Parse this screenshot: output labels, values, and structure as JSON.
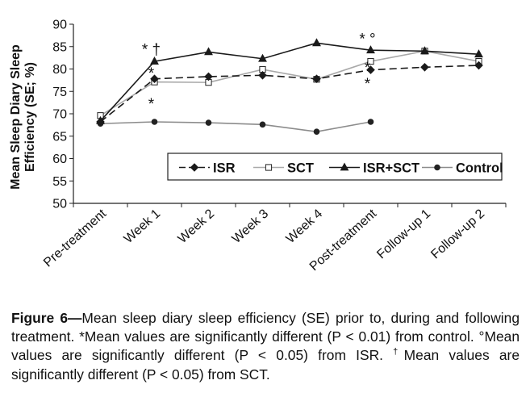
{
  "chart_data": {
    "type": "line",
    "title": "",
    "xlabel": "",
    "ylabel": "Mean Sleep Diary Sleep Efficiency (SE; %)",
    "ylim": [
      50,
      90
    ],
    "yticks": [
      50,
      55,
      60,
      65,
      70,
      75,
      80,
      85,
      90
    ],
    "grid": false,
    "legend_position": "bottom-right inside plot",
    "categories": [
      "Pre-treatment",
      "Week 1",
      "Week 2",
      "Week 3",
      "Week 4",
      "Post-treatment",
      "Follow-up 1",
      "Follow-up 2"
    ],
    "series": [
      {
        "name": "ISR",
        "marker": "diamond",
        "line": "dashed",
        "color": "#1a1a1a",
        "values": [
          68.2,
          77.8,
          78.3,
          78.6,
          77.8,
          79.8,
          80.4,
          80.8
        ]
      },
      {
        "name": "SCT",
        "marker": "open-square",
        "line": "solid",
        "color": "#a9a9a9",
        "values": [
          69.6,
          77.1,
          77.0,
          79.9,
          77.7,
          81.7,
          84.0,
          81.7
        ]
      },
      {
        "name": "ISR+SCT",
        "marker": "triangle",
        "line": "solid",
        "color": "#1a1a1a",
        "values": [
          68.4,
          81.7,
          83.8,
          82.3,
          85.8,
          84.2,
          84.0,
          83.3
        ]
      },
      {
        "name": "Control",
        "marker": "circle",
        "line": "solid",
        "color": "#8c8c8c",
        "values": [
          67.8,
          68.2,
          68.0,
          67.6,
          66.0,
          68.2,
          null,
          null
        ]
      }
    ],
    "annotations": [
      {
        "text": "* †",
        "category": "Week 1",
        "value": 84.7
      },
      {
        "text": "*",
        "category": "Week 1",
        "value": 79.4
      },
      {
        "text": "*",
        "category": "Week 1",
        "value": 72.5
      },
      {
        "text": "* °",
        "category": "Post-treatment",
        "value": 87.0
      },
      {
        "text": "*",
        "category": "Post-treatment",
        "value": 80.6
      },
      {
        "text": "*",
        "category": "Post-treatment",
        "value": 77.0
      }
    ]
  },
  "caption": {
    "label": "Figure 6",
    "dash": "—",
    "text": "Mean sleep diary sleep efficiency (SE) prior to, during and following treatment. *Mean values are significantly different (P < 0.01) from control. °Mean values are significantly different (P < 0.05) from ISR. ",
    "dagger": "†",
    "text2": "Mean values are significantly different (P < 0.05) from SCT."
  }
}
